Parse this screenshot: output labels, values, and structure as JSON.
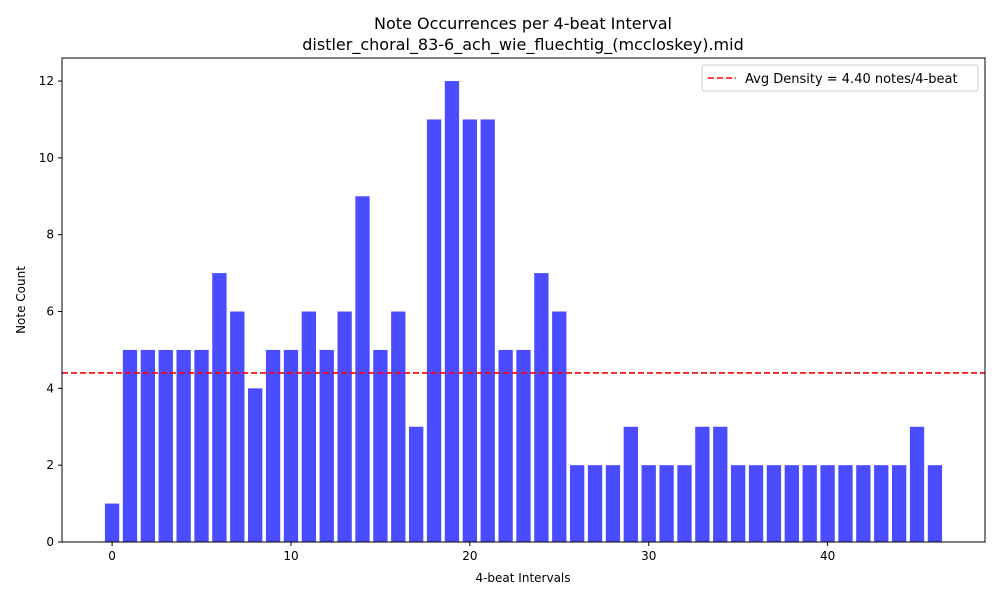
{
  "chart_data": {
    "type": "bar",
    "title": "Note Occurrences per 4-beat Interval",
    "subtitle": "distler_choral_83-6_ach_wie_fluechtig_(mccloskey).mid",
    "xlabel": "4-beat Intervals",
    "ylabel": "Note Count",
    "x": [
      0,
      1,
      2,
      3,
      4,
      5,
      6,
      7,
      8,
      9,
      10,
      11,
      12,
      13,
      14,
      15,
      16,
      17,
      18,
      19,
      20,
      21,
      22,
      23,
      24,
      25,
      26,
      27,
      28,
      29,
      30,
      31,
      32,
      33,
      34,
      35,
      36,
      37,
      38,
      39,
      40,
      41,
      42,
      43,
      44,
      45,
      46
    ],
    "values": [
      1,
      5,
      5,
      5,
      5,
      5,
      7,
      6,
      4,
      5,
      5,
      6,
      5,
      6,
      9,
      5,
      6,
      3,
      11,
      12,
      11,
      11,
      5,
      5,
      7,
      6,
      2,
      2,
      2,
      3,
      2,
      2,
      2,
      3,
      3,
      2,
      2,
      2,
      2,
      2,
      2,
      2,
      2,
      2,
      2,
      3,
      2
    ],
    "xlim": [
      -2.8,
      48.8
    ],
    "ylim": [
      0,
      12.6
    ],
    "xticks": [
      0,
      10,
      20,
      30,
      40
    ],
    "yticks": [
      0,
      2,
      4,
      6,
      8,
      10,
      12
    ],
    "bar_color": "#4b4bff",
    "avg_line": {
      "value": 4.4,
      "label": "Avg Density = 4.40 notes/4-beat",
      "color": "#ff0000"
    },
    "grid": false,
    "legend_position": "top-right"
  }
}
